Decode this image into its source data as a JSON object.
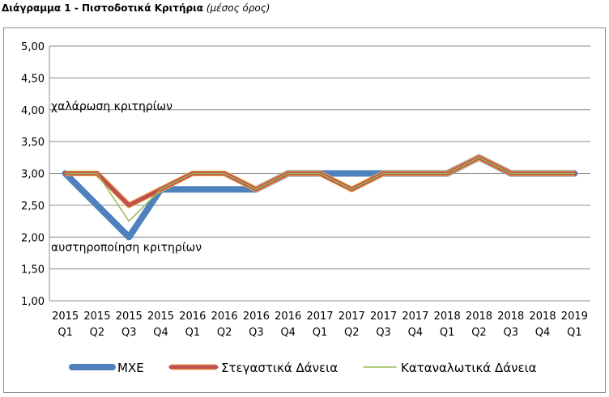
{
  "header": {
    "title_bold": "Διάγραμμα 1 - Πιστοδοτικά Κριτήρια",
    "title_italic": "(μέσος όρος)"
  },
  "chart_data": {
    "type": "line",
    "categories": [
      [
        "2015",
        "Q1"
      ],
      [
        "2015",
        "Q2"
      ],
      [
        "2015",
        "Q3"
      ],
      [
        "2015",
        "Q4"
      ],
      [
        "2016",
        "Q1"
      ],
      [
        "2016",
        "Q2"
      ],
      [
        "2016",
        "Q3"
      ],
      [
        "2016",
        "Q4"
      ],
      [
        "2017",
        "Q1"
      ],
      [
        "2017",
        "Q2"
      ],
      [
        "2017",
        "Q3"
      ],
      [
        "2017",
        "Q4"
      ],
      [
        "2018",
        "Q1"
      ],
      [
        "2018",
        "Q2"
      ],
      [
        "2018",
        "Q3"
      ],
      [
        "2018",
        "Q4"
      ],
      [
        "2019",
        "Q1"
      ]
    ],
    "ylim": [
      1,
      5
    ],
    "yticks": [
      "1,00",
      "1,50",
      "2,00",
      "2,50",
      "3,00",
      "3,50",
      "4,00",
      "4,50",
      "5,00"
    ],
    "grid": true,
    "legend_position": "bottom",
    "annotations": [
      {
        "text": "χαλάρωση κριτηρίων",
        "y": 4.0
      },
      {
        "text": "αυστηροποίηση κριτηρίων",
        "y": 1.78
      }
    ],
    "series": [
      {
        "name": "ΜΧΕ",
        "color": "#4f81bd",
        "values": [
          3.0,
          2.5,
          2.0,
          2.75,
          2.75,
          2.75,
          2.75,
          3.0,
          3.0,
          3.0,
          3.0,
          3.0,
          3.0,
          3.25,
          3.0,
          3.0,
          3.0
        ]
      },
      {
        "name": "Στεγαστικά Δάνεια",
        "color": "#c0504d",
        "values": [
          3.0,
          3.0,
          2.5,
          2.75,
          3.0,
          3.0,
          2.75,
          3.0,
          3.0,
          2.75,
          3.0,
          3.0,
          3.0,
          3.25,
          3.0,
          3.0,
          3.0
        ]
      },
      {
        "name": "Καταναλωτικά Δάνεια",
        "color": "#9bbb59",
        "values": [
          3.0,
          3.0,
          2.25,
          2.75,
          3.0,
          3.0,
          2.75,
          3.0,
          3.0,
          2.75,
          3.0,
          3.0,
          3.0,
          3.25,
          3.0,
          3.0,
          3.0
        ]
      }
    ]
  }
}
